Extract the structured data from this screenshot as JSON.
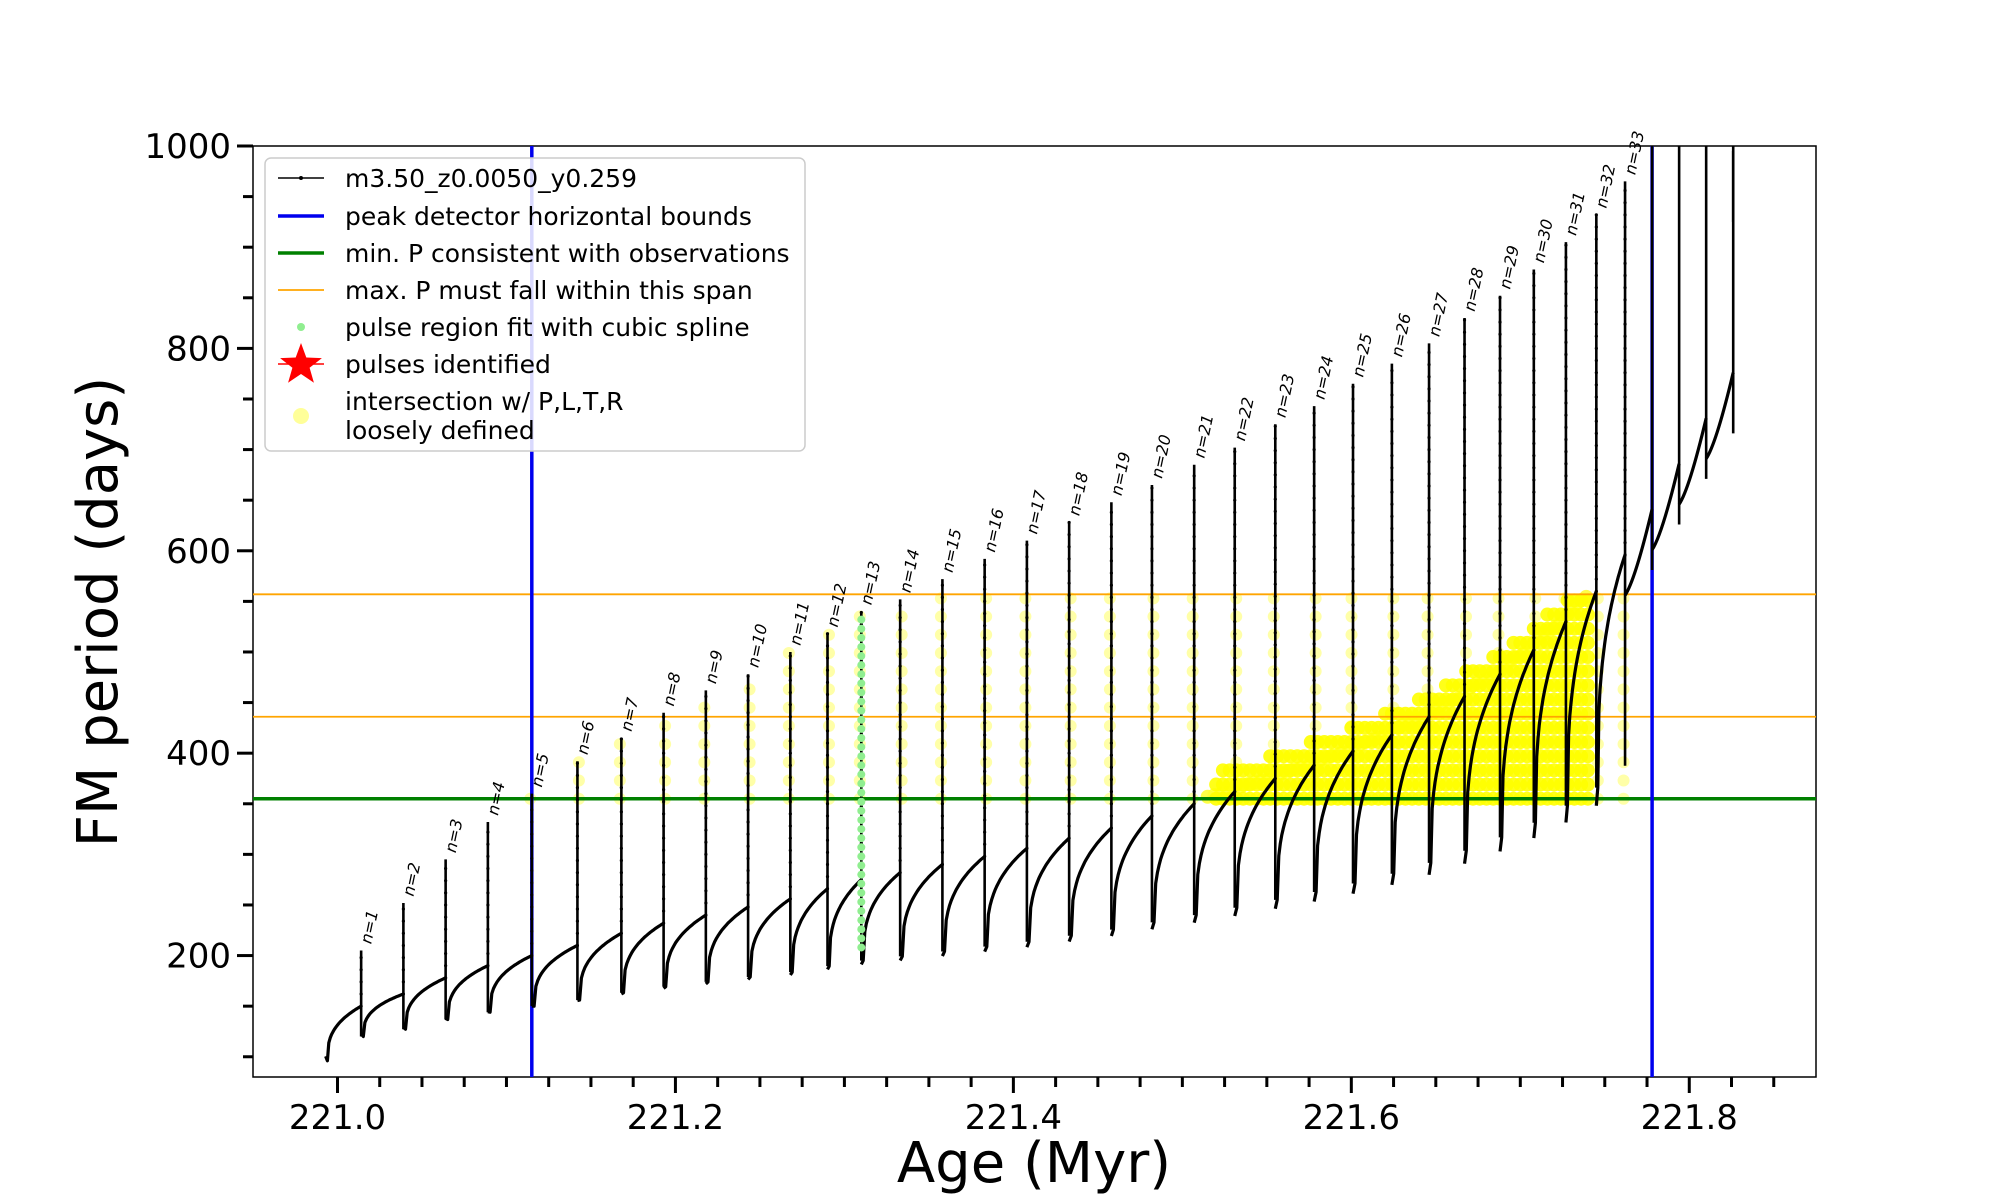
{
  "chart_data": {
    "type": "line",
    "xlabel": "Age (Myr)",
    "ylabel": "FM period (days)",
    "xlim": [
      220.95,
      221.875
    ],
    "ylim": [
      80,
      1000
    ],
    "x_ticks": [
      221.0,
      221.2,
      221.4,
      221.6,
      221.8
    ],
    "x_tick_labels": [
      "221.0",
      "221.2",
      "221.4",
      "221.6",
      "221.8"
    ],
    "y_ticks": [
      200,
      400,
      600,
      800,
      1000
    ],
    "y_tick_labels": [
      "200",
      "400",
      "600",
      "800",
      "1000"
    ],
    "grid": false,
    "legend_position": "top-left",
    "legend": [
      {
        "label": "m3.50_z0.0050_y0.259",
        "marker": "line-dot",
        "color": "#000000"
      },
      {
        "label": "peak detector horizontal bounds",
        "marker": "line",
        "color": "#0000ee"
      },
      {
        "label": "min. P consistent with observations",
        "marker": "line",
        "color": "#008000"
      },
      {
        "label": "max. P must fall within this span",
        "marker": "thin-line",
        "color": "#ffa500"
      },
      {
        "label": "pulse region fit with cubic spline",
        "marker": "dot",
        "color": "#90ee90"
      },
      {
        "label": "pulses identified",
        "marker": "star",
        "color": "#ff0000"
      },
      {
        "label": "intersection w/ P,L,T,R",
        "label2": "loosely defined",
        "marker": "circle",
        "color": "#ffff99"
      }
    ],
    "vertical_bounds": [
      221.115,
      221.778
    ],
    "min_period": 355,
    "max_period_span": [
      436,
      557
    ],
    "spline_pulse_age": 221.31,
    "spline_pulse_range": [
      208,
      540
    ],
    "pulses": [
      {
        "n": "n=1",
        "age": 221.014,
        "base": 150,
        "peak": 205
      },
      {
        "n": "n=2",
        "age": 221.039,
        "base": 162,
        "peak": 252
      },
      {
        "n": "n=3",
        "age": 221.064,
        "base": 178,
        "peak": 295
      },
      {
        "n": "n=4",
        "age": 221.089,
        "base": 190,
        "peak": 332
      },
      {
        "n": "n=5",
        "age": 221.115,
        "base": 200,
        "peak": 360
      },
      {
        "n": "n=6",
        "age": 221.142,
        "base": 210,
        "peak": 392
      },
      {
        "n": "n=7",
        "age": 221.168,
        "base": 222,
        "peak": 415
      },
      {
        "n": "n=8",
        "age": 221.193,
        "base": 232,
        "peak": 440
      },
      {
        "n": "n=9",
        "age": 221.218,
        "base": 240,
        "peak": 462
      },
      {
        "n": "n=10",
        "age": 221.243,
        "base": 248,
        "peak": 478
      },
      {
        "n": "n=11",
        "age": 221.268,
        "base": 256,
        "peak": 500
      },
      {
        "n": "n=12",
        "age": 221.29,
        "base": 266,
        "peak": 518
      },
      {
        "n": "n=13",
        "age": 221.31,
        "base": 275,
        "peak": 540
      },
      {
        "n": "n=14",
        "age": 221.333,
        "base": 282,
        "peak": 552
      },
      {
        "n": "n=15",
        "age": 221.358,
        "base": 290,
        "peak": 572
      },
      {
        "n": "n=16",
        "age": 221.383,
        "base": 298,
        "peak": 592
      },
      {
        "n": "n=17",
        "age": 221.408,
        "base": 306,
        "peak": 610
      },
      {
        "n": "n=18",
        "age": 221.433,
        "base": 316,
        "peak": 628
      },
      {
        "n": "n=19",
        "age": 221.458,
        "base": 326,
        "peak": 648
      },
      {
        "n": "n=20",
        "age": 221.482,
        "base": 338,
        "peak": 665
      },
      {
        "n": "n=21",
        "age": 221.507,
        "base": 350,
        "peak": 685
      },
      {
        "n": "n=22",
        "age": 221.531,
        "base": 362,
        "peak": 702
      },
      {
        "n": "n=23",
        "age": 221.555,
        "base": 375,
        "peak": 725
      },
      {
        "n": "n=24",
        "age": 221.578,
        "base": 388,
        "peak": 743
      },
      {
        "n": "n=25",
        "age": 221.601,
        "base": 402,
        "peak": 765
      },
      {
        "n": "n=26",
        "age": 221.624,
        "base": 418,
        "peak": 785
      },
      {
        "n": "n=27",
        "age": 221.646,
        "base": 436,
        "peak": 805
      },
      {
        "n": "n=28",
        "age": 221.667,
        "base": 456,
        "peak": 830
      },
      {
        "n": "n=29",
        "age": 221.688,
        "base": 478,
        "peak": 852
      },
      {
        "n": "n=30",
        "age": 221.708,
        "base": 502,
        "peak": 878
      },
      {
        "n": "n=31",
        "age": 221.727,
        "base": 530,
        "peak": 905
      },
      {
        "n": "n=32",
        "age": 221.745,
        "base": 560,
        "peak": 932
      },
      {
        "n": "n=33",
        "age": 221.762,
        "base": 596,
        "peak": 965
      }
    ]
  }
}
